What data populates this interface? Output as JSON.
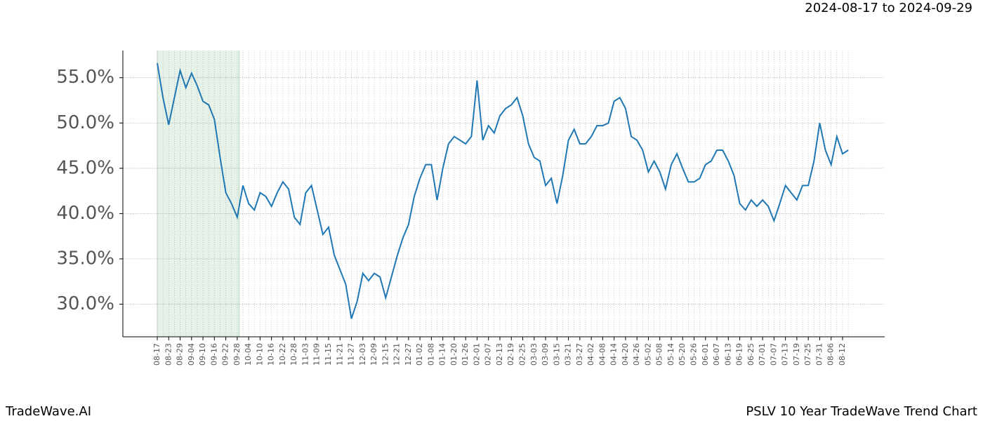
{
  "chart_data": {
    "type": "line",
    "date_range": "2024-08-17 to 2024-09-29",
    "footer_left": "TradeWave.AI",
    "footer_right": "PSLV 10 Year TradeWave Trend Chart",
    "categories": [
      "08-17",
      null,
      "08-23",
      null,
      "08-29",
      null,
      "09-04",
      null,
      "09-10",
      null,
      "09-16",
      null,
      "09-22",
      null,
      "09-28",
      null,
      "10-04",
      null,
      "10-10",
      null,
      "10-16",
      null,
      "10-22",
      null,
      "10-28",
      null,
      "11-03",
      null,
      "11-09",
      null,
      "11-15",
      null,
      "11-21",
      null,
      "11-27",
      null,
      "12-03",
      null,
      "12-09",
      null,
      "12-15",
      null,
      "12-21",
      null,
      "12-27",
      null,
      "01-02",
      null,
      "01-08",
      null,
      "01-14",
      null,
      "01-20",
      null,
      "01-26",
      null,
      "02-01",
      null,
      "02-07",
      null,
      "02-13",
      null,
      "02-19",
      null,
      "02-25",
      null,
      "03-03",
      null,
      "03-09",
      null,
      "03-15",
      null,
      "03-21",
      null,
      "03-27",
      null,
      "04-02",
      null,
      "04-08",
      null,
      "04-14",
      null,
      "04-20",
      null,
      "04-26",
      null,
      "05-02",
      null,
      "05-08",
      null,
      "05-14",
      null,
      "05-20",
      null,
      "05-26",
      null,
      "06-01",
      null,
      "06-07",
      null,
      "06-13",
      null,
      "06-19",
      null,
      "06-25",
      null,
      "07-01",
      null,
      "07-07",
      null,
      "07-13",
      null,
      "07-19",
      null,
      "07-25",
      null,
      "07-31",
      null,
      "08-06",
      null,
      "08-12",
      null
    ],
    "series": [
      {
        "color": "#1f77b4",
        "values": [
          56.6,
          52.8,
          49.8,
          52.8,
          55.8,
          53.9,
          55.5,
          54.1,
          52.4,
          52.0,
          50.4,
          46.2,
          42.3,
          41.1,
          39.6,
          43.1,
          41.1,
          40.4,
          42.3,
          41.9,
          40.8,
          42.3,
          43.5,
          42.7,
          39.6,
          38.8,
          42.3,
          43.1,
          40.4,
          37.7,
          38.5,
          35.4,
          33.8,
          32.2,
          28.4,
          30.3,
          33.4,
          32.6,
          33.4,
          33.0,
          30.7,
          33.0,
          35.3,
          37.3,
          38.8,
          41.9,
          43.9,
          45.4,
          45.4,
          41.5,
          45.0,
          47.7,
          48.5,
          48.1,
          47.7,
          48.5,
          54.7,
          48.1,
          49.7,
          48.9,
          50.8,
          51.6,
          52.0,
          52.8,
          50.8,
          47.7,
          46.2,
          45.8,
          43.1,
          43.9,
          41.1,
          44.2,
          48.1,
          49.3,
          47.7,
          47.7,
          48.5,
          49.7,
          49.7,
          50.0,
          52.4,
          52.8,
          51.6,
          48.5,
          48.1,
          47.0,
          44.6,
          45.8,
          44.6,
          42.7,
          45.4,
          46.6,
          45.0,
          43.5,
          43.5,
          43.9,
          45.4,
          45.8,
          47.0,
          47.0,
          45.8,
          44.2,
          41.1,
          40.4,
          41.5,
          40.8,
          41.5,
          40.8,
          39.2,
          41.1,
          43.1,
          42.3,
          41.5,
          43.1,
          43.1,
          45.8,
          50.0,
          47.0,
          45.4,
          48.5,
          46.6,
          47.0
        ]
      }
    ],
    "ylim": [
      26.4,
      58.0
    ],
    "yticks": [
      {
        "value": 30,
        "label": "30.0%"
      },
      {
        "value": 35,
        "label": "35.0%"
      },
      {
        "value": 40,
        "label": "40.0%"
      },
      {
        "value": 45,
        "label": "45.0%"
      },
      {
        "value": 50,
        "label": "50.0%"
      },
      {
        "value": 55,
        "label": "55.0%"
      }
    ],
    "grid": true
  }
}
